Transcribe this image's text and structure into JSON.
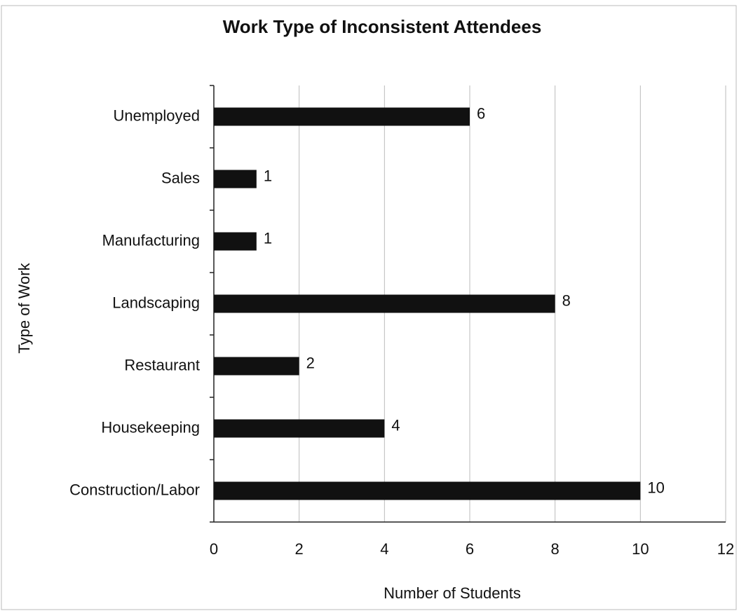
{
  "chart_data": {
    "type": "bar",
    "orientation": "horizontal",
    "title": "Work Type of Inconsistent Attendees",
    "xlabel": "Number of Students",
    "ylabel": "Type of Work",
    "categories": [
      "Unemployed",
      "Sales",
      "Manufacturing",
      "Landscaping",
      "Restaurant",
      "Housekeeping",
      "Construction/Labor"
    ],
    "values": [
      6,
      1,
      1,
      8,
      2,
      4,
      10
    ],
    "color": "#111111",
    "xlim": [
      0,
      12
    ],
    "xticks": [
      0,
      2,
      4,
      6,
      8,
      10,
      12
    ],
    "grid": true
  }
}
